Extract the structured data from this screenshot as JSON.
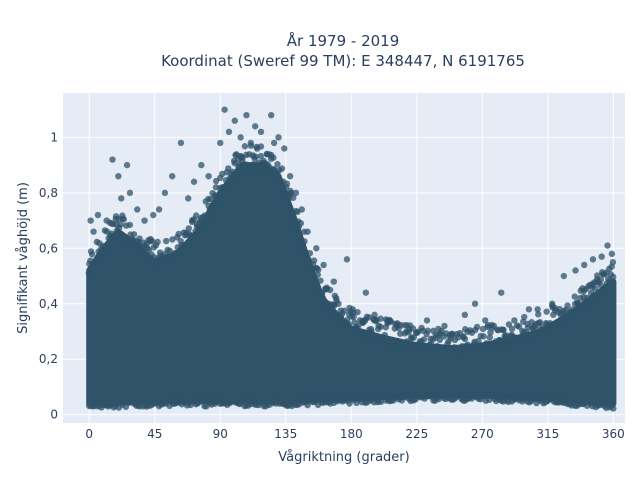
{
  "chart_data": {
    "type": "scatter",
    "title_lines": [
      "År 1979 - 2019",
      "Koordinat (Sweref 99 TM): E 348447, N 6191765"
    ],
    "xlabel": "Vågriktning (grader)",
    "ylabel": "Signifikant våghöjd (m)",
    "xlim": [
      -18,
      368
    ],
    "ylim": [
      -0.03,
      1.16
    ],
    "x_ticks": [
      0,
      45,
      90,
      135,
      180,
      225,
      270,
      315,
      360
    ],
    "y_ticks": [
      0,
      0.2,
      0.4,
      0.6,
      0.8,
      1
    ],
    "y_tick_labels": [
      "0",
      "0,2",
      "0,4",
      "0,6",
      "0,8",
      "1"
    ],
    "grid": true,
    "marker_color": "#2f5369",
    "background_color": "#e5ecf6",
    "series": [
      {
        "envelope_upper": [
          [
            0,
            0.52
          ],
          [
            10,
            0.6
          ],
          [
            20,
            0.66
          ],
          [
            30,
            0.62
          ],
          [
            45,
            0.55
          ],
          [
            60,
            0.58
          ],
          [
            75,
            0.66
          ],
          [
            90,
            0.8
          ],
          [
            105,
            0.9
          ],
          [
            120,
            0.9
          ],
          [
            130,
            0.86
          ],
          [
            140,
            0.72
          ],
          [
            150,
            0.56
          ],
          [
            160,
            0.42
          ],
          [
            170,
            0.36
          ],
          [
            180,
            0.31
          ],
          [
            200,
            0.28
          ],
          [
            225,
            0.25
          ],
          [
            250,
            0.24
          ],
          [
            270,
            0.25
          ],
          [
            290,
            0.27
          ],
          [
            310,
            0.3
          ],
          [
            330,
            0.36
          ],
          [
            345,
            0.42
          ],
          [
            360,
            0.48
          ]
        ],
        "envelope_lower": [
          [
            0,
            0.04
          ],
          [
            45,
            0.05
          ],
          [
            90,
            0.05
          ],
          [
            135,
            0.05
          ],
          [
            180,
            0.06
          ],
          [
            225,
            0.07
          ],
          [
            270,
            0.07
          ],
          [
            315,
            0.06
          ],
          [
            360,
            0.04
          ]
        ],
        "outliers": [
          [
            1,
            0.7
          ],
          [
            3,
            0.66
          ],
          [
            6,
            0.72
          ],
          [
            12,
            0.7
          ],
          [
            16,
            0.92
          ],
          [
            20,
            0.86
          ],
          [
            22,
            0.78
          ],
          [
            26,
            0.9
          ],
          [
            28,
            0.8
          ],
          [
            33,
            0.74
          ],
          [
            38,
            0.7
          ],
          [
            44,
            0.72
          ],
          [
            48,
            0.74
          ],
          [
            52,
            0.8
          ],
          [
            57,
            0.86
          ],
          [
            63,
            0.98
          ],
          [
            68,
            0.78
          ],
          [
            72,
            0.84
          ],
          [
            77,
            0.9
          ],
          [
            82,
            0.86
          ],
          [
            87,
            0.82
          ],
          [
            90,
            0.98
          ],
          [
            93,
            1.1
          ],
          [
            96,
            1.02
          ],
          [
            100,
            1.06
          ],
          [
            104,
            1.0
          ],
          [
            108,
            1.08
          ],
          [
            111,
            0.98
          ],
          [
            114,
            1.04
          ],
          [
            118,
            1.02
          ],
          [
            122,
            0.94
          ],
          [
            125,
            1.08
          ],
          [
            127,
            0.98
          ],
          [
            130,
            1.0
          ],
          [
            134,
            0.96
          ],
          [
            138,
            0.86
          ],
          [
            142,
            0.8
          ],
          [
            146,
            0.74
          ],
          [
            150,
            0.66
          ],
          [
            156,
            0.6
          ],
          [
            161,
            0.54
          ],
          [
            168,
            0.48
          ],
          [
            177,
            0.56
          ],
          [
            181,
            0.38
          ],
          [
            190,
            0.44
          ],
          [
            196,
            0.36
          ],
          [
            205,
            0.34
          ],
          [
            218,
            0.3
          ],
          [
            232,
            0.34
          ],
          [
            244,
            0.32
          ],
          [
            258,
            0.36
          ],
          [
            265,
            0.4
          ],
          [
            272,
            0.34
          ],
          [
            283,
            0.44
          ],
          [
            292,
            0.34
          ],
          [
            302,
            0.38
          ],
          [
            308,
            0.38
          ],
          [
            318,
            0.4
          ],
          [
            326,
            0.5
          ],
          [
            334,
            0.52
          ],
          [
            340,
            0.54
          ],
          [
            346,
            0.56
          ],
          [
            352,
            0.57
          ],
          [
            356,
            0.61
          ],
          [
            359,
            0.58
          ]
        ]
      }
    ]
  }
}
